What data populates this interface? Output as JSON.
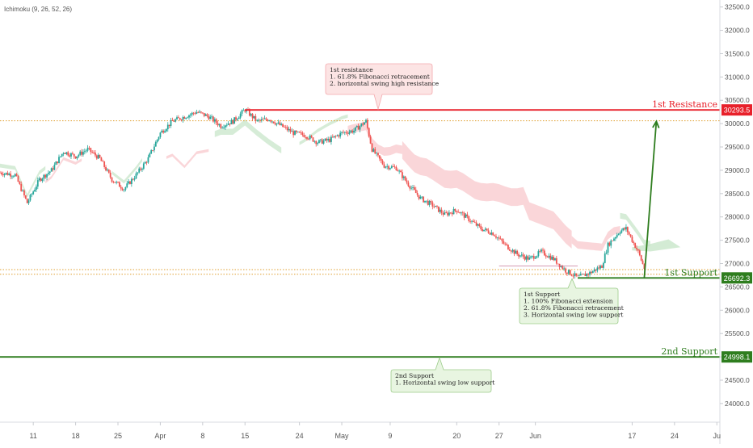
{
  "indicator": {
    "label": "Ichimoku (9, 26, 52, 26)"
  },
  "chart_data": {
    "type": "candlestick",
    "title": "",
    "y_ticks": [
      24000,
      24500,
      25000,
      25500,
      26000,
      26500,
      27000,
      27500,
      28000,
      28500,
      29000,
      29500,
      30000,
      30500,
      31000,
      31500,
      32000,
      32500
    ],
    "y_tick_labels": [
      "24000.0",
      "24500.0",
      "25000.0",
      "25500.0",
      "26000.0",
      "26500.0",
      "27000.0",
      "27500.0",
      "28000.0",
      "28500.0",
      "29000.0",
      "29500.0",
      "30000.0",
      "30500.0",
      "31000.0",
      "31500.0",
      "32000.0",
      "32500.0"
    ],
    "ylim": [
      23600,
      32650
    ],
    "x_ticks": [
      "11",
      "18",
      "25",
      "Apr",
      "8",
      "15",
      "24",
      "May",
      "9",
      "20",
      "27",
      "Jun",
      "17",
      "24",
      "Ju"
    ],
    "x_tick_days": [
      11,
      18,
      25,
      32,
      39,
      46,
      55,
      62,
      70,
      81,
      88,
      94,
      110,
      117,
      124
    ],
    "xlim": [
      5.5,
      124.5
    ],
    "series_path": [
      [
        5.5,
        28950
      ],
      [
        8,
        28900
      ],
      [
        10,
        28300
      ],
      [
        12,
        28800
      ],
      [
        14,
        29000
      ],
      [
        16,
        29400
      ],
      [
        18,
        29300
      ],
      [
        20,
        29450
      ],
      [
        22,
        29250
      ],
      [
        24,
        28800
      ],
      [
        26,
        28600
      ],
      [
        28,
        28900
      ],
      [
        30,
        29250
      ],
      [
        32,
        29800
      ],
      [
        34,
        30050
      ],
      [
        36,
        30150
      ],
      [
        38,
        30250
      ],
      [
        40,
        30150
      ],
      [
        42,
        29950
      ],
      [
        44,
        30050
      ],
      [
        46,
        30300
      ],
      [
        48,
        30050
      ],
      [
        50,
        30100
      ],
      [
        52,
        29950
      ],
      [
        54,
        29800
      ],
      [
        56,
        29750
      ],
      [
        58,
        29600
      ],
      [
        60,
        29650
      ],
      [
        62,
        29800
      ],
      [
        64,
        29850
      ],
      [
        66,
        30050
      ],
      [
        67,
        29450
      ],
      [
        69,
        29100
      ],
      [
        71,
        29050
      ],
      [
        73,
        28700
      ],
      [
        75,
        28400
      ],
      [
        77,
        28250
      ],
      [
        79,
        28050
      ],
      [
        81,
        28150
      ],
      [
        83,
        27950
      ],
      [
        85,
        27750
      ],
      [
        87,
        27650
      ],
      [
        89,
        27400
      ],
      [
        91,
        27200
      ],
      [
        93,
        27100
      ],
      [
        95,
        27250
      ],
      [
        97,
        27100
      ],
      [
        99,
        26850
      ],
      [
        101,
        26700
      ],
      [
        103,
        26800
      ],
      [
        105,
        26950
      ],
      [
        106,
        27400
      ],
      [
        107,
        27550
      ],
      [
        108,
        27700
      ],
      [
        109,
        27750
      ],
      [
        110,
        27500
      ],
      [
        111,
        27250
      ],
      [
        112,
        26900
      ]
    ],
    "levels": [
      {
        "name": "1st Resistance",
        "value": 30293.5,
        "value_label": "30293.5",
        "color": "#e8202a"
      },
      {
        "name": "1st Support",
        "value": 26692.3,
        "value_label": "26692.3",
        "color": "#2e7d1e"
      },
      {
        "name": "2nd Support",
        "value": 24998.1,
        "value_label": "24998.1",
        "color": "#2e7d1e"
      }
    ],
    "dotted_levels": [
      30060,
      26870,
      26770
    ],
    "cloud_bullish_color": "#c8e6c9",
    "cloud_bearish_color": "#f8c8cc",
    "candle_up_color": "#26a69a",
    "candle_down_color": "#ef5350",
    "target_arrow": {
      "from": [
        112,
        26692
      ],
      "to": [
        114,
        30050
      ],
      "color": "#2e7d1e"
    },
    "annotations": [
      {
        "id": "resistance",
        "lines": [
          "1st resistance",
          "1. 61.8% Fibonacci retracement",
          "2. horizontal swing high resistance"
        ],
        "fill": "#fce4e4",
        "stroke": "#f4a9ad"
      },
      {
        "id": "support1",
        "lines": [
          "1st Support",
          "1. 100% Fibonacci extension",
          "2. 61.8% Fibonacci retracement",
          "3. Horizontal swing low support"
        ],
        "fill": "#e8f5e1",
        "stroke": "#9ccc8a"
      },
      {
        "id": "support2",
        "lines": [
          "2nd Support",
          "1.  Horizontal swing low support"
        ],
        "fill": "#e8f5e1",
        "stroke": "#9ccc8a"
      }
    ]
  }
}
